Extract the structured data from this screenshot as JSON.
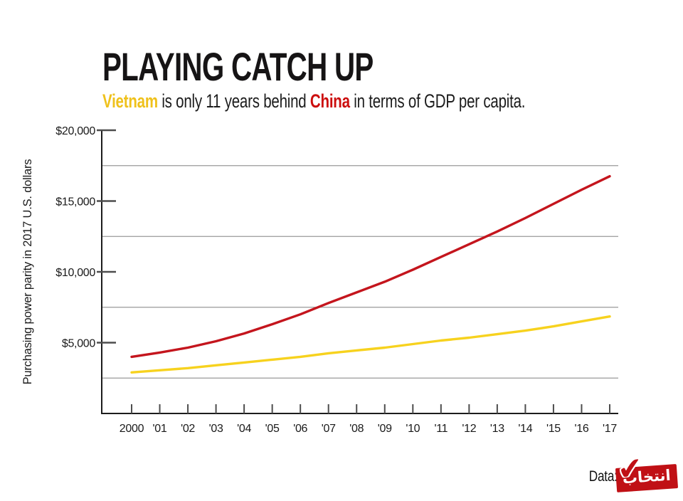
{
  "title": "PLAYING CATCH UP",
  "subtitle": {
    "vietnam": "Vietnam",
    "middle": " is only 11 years behind ",
    "china": "China",
    "end": " in terms of GDP per capita."
  },
  "footer": {
    "source_label": "Data:",
    "source_logo_text": "انتخاب"
  },
  "colors": {
    "china_line": "#C4151D",
    "vietnam_line": "#F7D21E",
    "china_text": "#CC0E0E",
    "vietnam_text": "#EFC11B",
    "grid": "#9a9a9a",
    "axis": "#1c1c1c",
    "tick": "#4d4d4d",
    "logo_red": "#C01015"
  },
  "chart_data": {
    "type": "line",
    "title": "PLAYING CATCH UP",
    "subtitle": "Vietnam is only 11 years behind China in terms of GDP per capita.",
    "xlabel": "",
    "ylabel": "Purchasing power parity in 2017 U.S. dollars",
    "x": [
      2000,
      2001,
      2002,
      2003,
      2004,
      2005,
      2006,
      2007,
      2008,
      2009,
      2010,
      2011,
      2012,
      2013,
      2014,
      2015,
      2016,
      2017
    ],
    "x_labels": [
      "2000",
      "'01",
      "'02",
      "'03",
      "'04",
      "'05",
      "'06",
      "'07",
      "'08",
      "'09",
      "'10",
      "'11",
      "'12",
      "'13",
      "'14",
      "'15",
      "'16",
      "'17"
    ],
    "ylim": [
      0,
      20000
    ],
    "y_ticks": [
      {
        "label": "$20,000",
        "value": 20000
      },
      {
        "label": "$15,000",
        "value": 15000
      },
      {
        "label": "$10,000",
        "value": 10000
      },
      {
        "label": "$5,000",
        "value": 5000
      }
    ],
    "gridline_values": [
      17500,
      12500,
      7500,
      2500
    ],
    "grid": "horizontal-only",
    "legend_position": "none",
    "series": [
      {
        "name": "China",
        "color_key": "china_line",
        "values": [
          4000,
          4300,
          4650,
          5100,
          5650,
          6300,
          7000,
          7800,
          8550,
          9300,
          10150,
          11050,
          11950,
          12850,
          13800,
          14800,
          15800,
          16750
        ]
      },
      {
        "name": "Vietnam",
        "color_key": "vietnam_line",
        "values": [
          2900,
          3050,
          3200,
          3400,
          3600,
          3800,
          4000,
          4250,
          4450,
          4650,
          4900,
          5150,
          5350,
          5600,
          5850,
          6150,
          6500,
          6850
        ]
      }
    ]
  }
}
